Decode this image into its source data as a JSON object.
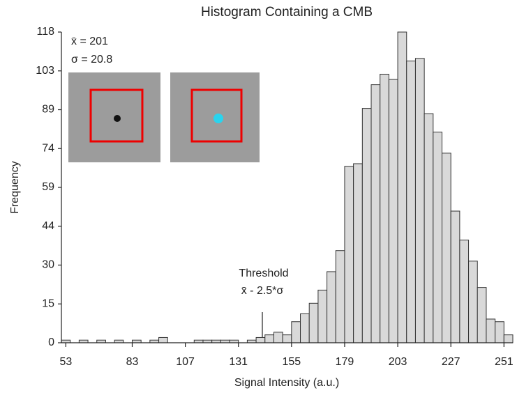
{
  "chart_data": {
    "type": "histogram",
    "title": "Histogram Containing a CMB",
    "x_label": "Signal Intensity (a.u.)",
    "y_label": "Frequency",
    "bins": [
      51,
      55,
      59,
      63,
      67,
      71,
      75,
      79,
      83,
      87,
      91,
      95,
      99,
      103,
      107,
      111,
      115,
      119,
      123,
      127,
      131,
      135,
      139,
      143,
      147,
      151,
      155,
      159,
      163,
      167,
      171,
      175,
      179,
      183,
      187,
      191,
      195,
      199,
      203,
      207,
      211,
      215,
      219,
      223,
      227,
      231,
      235,
      239,
      243,
      247,
      251,
      255
    ],
    "values": [
      1,
      0,
      1,
      0,
      1,
      0,
      1,
      0,
      1,
      0,
      1,
      2,
      0,
      0,
      0,
      1,
      1,
      1,
      1,
      1,
      0,
      1,
      2,
      3,
      4,
      3,
      8,
      11,
      15,
      20,
      27,
      35,
      67,
      68,
      89,
      98,
      102,
      100,
      118,
      107,
      108,
      87,
      80,
      72,
      50,
      39,
      31,
      21,
      9,
      8,
      3
    ],
    "color": "#d9d9d9",
    "xlim": [
      51,
      255
    ],
    "xticks": [
      53,
      83,
      107,
      131,
      155,
      179,
      203,
      227,
      251
    ],
    "ylim": [
      0,
      118
    ],
    "yticks": [
      0,
      {
        "value": 14.75,
        "label": "15"
      },
      {
        "value": 29.5,
        "label": "30"
      },
      {
        "value": 44.25,
        "label": "44"
      },
      59,
      {
        "value": 73.75,
        "label": "74"
      },
      {
        "value": 88.5,
        "label": "89"
      },
      {
        "value": 103.25,
        "label": "103"
      },
      118
    ],
    "annotations": [
      "Threshold",
      "x̄ - 2.5*σ",
      "x̄ = 201",
      "σ = 20.8"
    ]
  }
}
